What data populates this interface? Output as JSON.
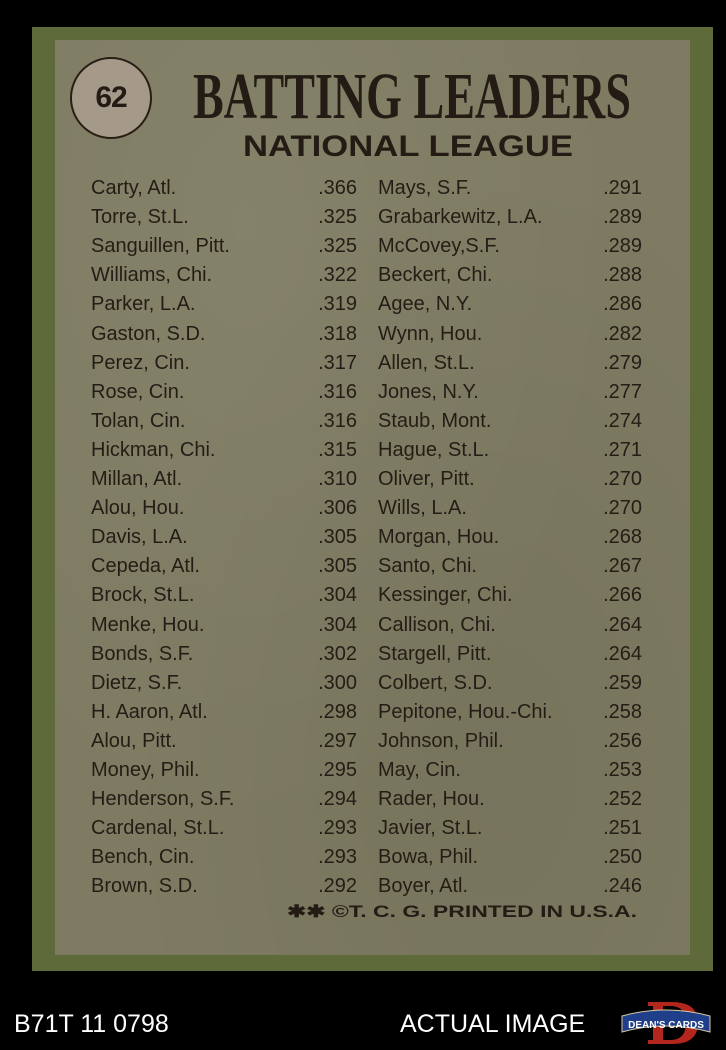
{
  "card": {
    "number": "62",
    "title": "BATTING LEADERS",
    "subtitle": "NATIONAL LEAGUE",
    "footer": "✱✱ ©T. C. G. PRINTED IN U.S.A.",
    "colors": {
      "border": "#5f6a3b",
      "panel": "#7e7b62",
      "ink": "#231d16"
    },
    "left_column": [
      {
        "name": "Carty, Atl.",
        "avg": ".366"
      },
      {
        "name": "Torre, St.L.",
        "avg": ".325"
      },
      {
        "name": "Sanguillen, Pitt.",
        "avg": ".325"
      },
      {
        "name": "Williams, Chi.",
        "avg": ".322"
      },
      {
        "name": "Parker, L.A.",
        "avg": ".319"
      },
      {
        "name": "Gaston, S.D.",
        "avg": ".318"
      },
      {
        "name": "Perez, Cin.",
        "avg": ".317"
      },
      {
        "name": "Rose, Cin.",
        "avg": ".316"
      },
      {
        "name": "Tolan, Cin.",
        "avg": ".316"
      },
      {
        "name": "Hickman, Chi.",
        "avg": ".315"
      },
      {
        "name": "Millan, Atl.",
        "avg": ".310"
      },
      {
        "name": "Alou, Hou.",
        "avg": ".306"
      },
      {
        "name": "Davis, L.A.",
        "avg": ".305"
      },
      {
        "name": "Cepeda, Atl.",
        "avg": ".305"
      },
      {
        "name": "Brock, St.L.",
        "avg": ".304"
      },
      {
        "name": "Menke, Hou.",
        "avg": ".304"
      },
      {
        "name": "Bonds,  S.F.",
        "avg": ".302"
      },
      {
        "name": "Dietz, S.F.",
        "avg": ".300"
      },
      {
        "name": "H. Aaron, Atl.",
        "avg": ".298"
      },
      {
        "name": "Alou, Pitt.",
        "avg": ".297"
      },
      {
        "name": "Money, Phil.",
        "avg": ".295"
      },
      {
        "name": "Henderson, S.F.",
        "avg": ".294"
      },
      {
        "name": "Cardenal, St.L.",
        "avg": ".293"
      },
      {
        "name": "Bench, Cin.",
        "avg": ".293"
      },
      {
        "name": "Brown, S.D.",
        "avg": ".292"
      }
    ],
    "right_column": [
      {
        "name": "Mays, S.F.",
        "avg": ".291"
      },
      {
        "name": "Grabarkewitz, L.A.",
        "avg": ".289"
      },
      {
        "name": "McCovey,S.F.",
        "avg": ".289"
      },
      {
        "name": "Beckert, Chi.",
        "avg": ".288"
      },
      {
        "name": "Agee, N.Y.",
        "avg": ".286"
      },
      {
        "name": "Wynn, Hou.",
        "avg": ".282"
      },
      {
        "name": "Allen, St.L.",
        "avg": ".279"
      },
      {
        "name": "Jones, N.Y.",
        "avg": ".277"
      },
      {
        "name": "Staub, Mont.",
        "avg": ".274"
      },
      {
        "name": "Hague, St.L.",
        "avg": ".271"
      },
      {
        "name": "Oliver, Pitt.",
        "avg": ".270"
      },
      {
        "name": "Wills, L.A.",
        "avg": ".270"
      },
      {
        "name": "Morgan, Hou.",
        "avg": ".268"
      },
      {
        "name": "Santo, Chi.",
        "avg": ".267"
      },
      {
        "name": "Kessinger, Chi.",
        "avg": ".266"
      },
      {
        "name": "Callison, Chi.",
        "avg": ".264"
      },
      {
        "name": "Stargell, Pitt.",
        "avg": ".264"
      },
      {
        "name": "Colbert, S.D.",
        "avg": ".259"
      },
      {
        "name": "Pepitone, Hou.-Chi.",
        "avg": ".258"
      },
      {
        "name": "Johnson, Phil.",
        "avg": ".256"
      },
      {
        "name": "May, Cin.",
        "avg": ".253"
      },
      {
        "name": "Rader, Hou.",
        "avg": ".252"
      },
      {
        "name": "Javier, St.L.",
        "avg": ".251"
      },
      {
        "name": "Bowa, Phil.",
        "avg": ".250"
      },
      {
        "name": "Boyer, Atl.",
        "avg": ".246"
      }
    ]
  },
  "caption": {
    "id": "B71T 11 0798",
    "label": "ACTUAL IMAGE",
    "logo_text": "DEAN'S CARDS",
    "logo_colors": {
      "letter": "#b3261e",
      "banner": "#1f3f8a"
    }
  }
}
